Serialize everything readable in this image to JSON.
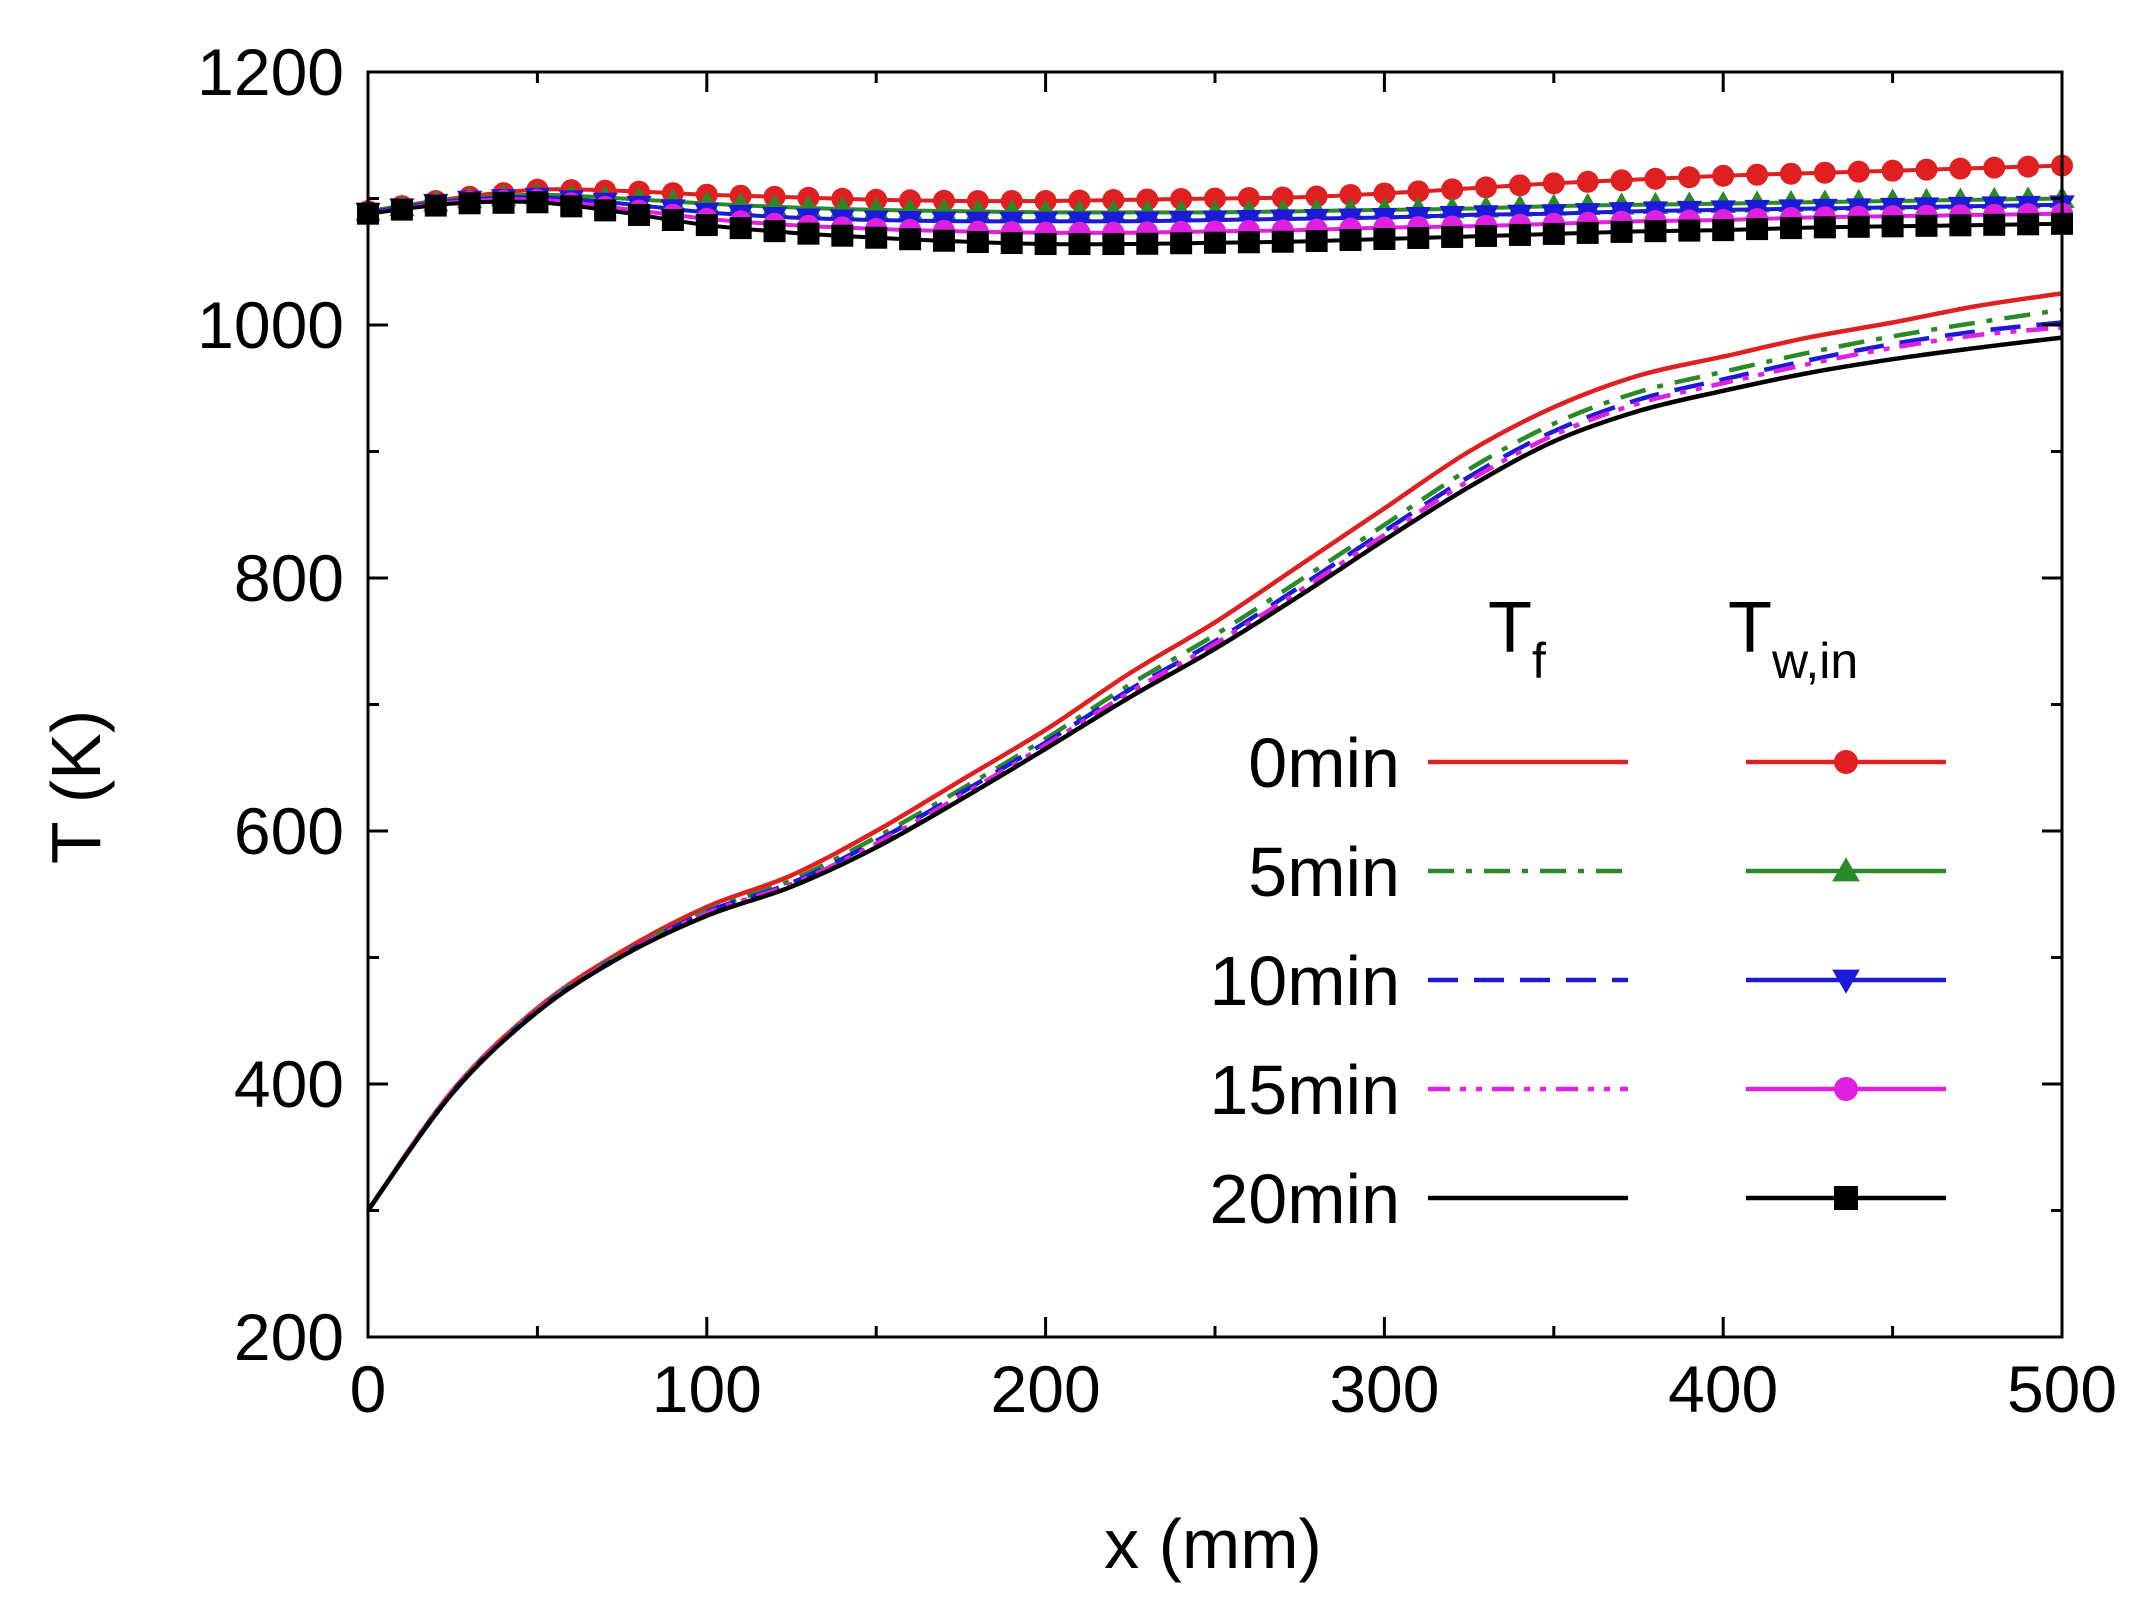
{
  "chart_data": {
    "type": "line",
    "title": "",
    "xlabel": "x (mm)",
    "ylabel": "T (K)",
    "xlim": [
      0,
      500
    ],
    "ylim": [
      200,
      1200
    ],
    "x_ticks": [
      0,
      100,
      200,
      300,
      400,
      500
    ],
    "y_ticks": [
      200,
      400,
      600,
      800,
      1000,
      1200
    ],
    "grid": false,
    "legend": {
      "placement": "bottom-right",
      "col_header_fluid": "T",
      "col_header_fluid_sub": "f",
      "col_header_wall": "T",
      "col_header_wall_sub": "w,in",
      "entries": [
        "0min",
        "5min",
        "10min",
        "15min",
        "20min"
      ]
    },
    "x": [
      0,
      25,
      50,
      75,
      100,
      125,
      150,
      175,
      200,
      225,
      250,
      275,
      300,
      325,
      350,
      375,
      400,
      425,
      450,
      475,
      500
    ],
    "series": [
      {
        "name": "T_f 0min",
        "group": "T_f",
        "time": "0min",
        "color": "#e02020",
        "dash": "solid",
        "values": [
          300,
          395,
          460,
          505,
          540,
          565,
          600,
          640,
          680,
          725,
          765,
          810,
          855,
          900,
          935,
          960,
          975,
          990,
          1002,
          1015,
          1025
        ]
      },
      {
        "name": "T_f 5min",
        "group": "T_f",
        "time": "5min",
        "color": "#2a8a2a",
        "dash": "dashdot",
        "values": [
          300,
          394,
          459,
          503,
          537,
          561,
          595,
          633,
          673,
          716,
          755,
          798,
          842,
          886,
          922,
          947,
          963,
          978,
          991,
          1002,
          1012
        ]
      },
      {
        "name": "T_f 10min",
        "group": "T_f",
        "time": "10min",
        "color": "#1a1ad8",
        "dash": "dash",
        "values": [
          300,
          394,
          458,
          502,
          536,
          559,
          592,
          630,
          670,
          712,
          750,
          793,
          837,
          880,
          916,
          941,
          957,
          972,
          985,
          995,
          1002
        ]
      },
      {
        "name": "T_f 15min",
        "group": "T_f",
        "time": "15min",
        "color": "#e020e0",
        "dash": "dashdotdot",
        "values": [
          300,
          394,
          458,
          502,
          535,
          558,
          590,
          628,
          668,
          710,
          748,
          790,
          834,
          877,
          913,
          938,
          954,
          969,
          982,
          992,
          998
        ]
      },
      {
        "name": "T_f 20min",
        "group": "T_f",
        "time": "20min",
        "color": "#000000",
        "dash": "solid",
        "values": [
          300,
          393,
          457,
          501,
          533,
          556,
          587,
          625,
          665,
          706,
          744,
          786,
          830,
          872,
          908,
          932,
          948,
          962,
          973,
          982,
          990
        ]
      },
      {
        "name": "T_w,in 0min",
        "group": "T_w,in",
        "time": "0min",
        "color": "#e02020",
        "marker": "circle",
        "values": [
          1090,
          1100,
          1107,
          1106,
          1103,
          1101,
          1099,
          1098,
          1098,
          1099,
          1100,
          1101,
          1104,
          1108,
          1112,
          1115,
          1118,
          1120,
          1122,
          1124,
          1126
        ]
      },
      {
        "name": "T_w,in 5min",
        "group": "T_w,in",
        "time": "5min",
        "color": "#2a8a2a",
        "marker": "triangle-up",
        "values": [
          1090,
          1099,
          1103,
          1100,
          1096,
          1093,
          1091,
          1090,
          1089,
          1089,
          1089,
          1090,
          1091,
          1092,
          1094,
          1095,
          1096,
          1097,
          1098,
          1099,
          1100
        ]
      },
      {
        "name": "T_w,in 10min",
        "group": "T_w,in",
        "time": "10min",
        "color": "#1a1ad8",
        "marker": "triangle-down",
        "values": [
          1089,
          1098,
          1101,
          1096,
          1089,
          1085,
          1083,
          1082,
          1082,
          1082,
          1083,
          1084,
          1085,
          1087,
          1088,
          1090,
          1091,
          1092,
          1093,
          1094,
          1095
        ]
      },
      {
        "name": "T_w,in 15min",
        "group": "T_w,in",
        "time": "15min",
        "color": "#e020e0",
        "marker": "circle",
        "values": [
          1088,
          1097,
          1099,
          1092,
          1084,
          1079,
          1076,
          1074,
          1073,
          1073,
          1074,
          1075,
          1077,
          1078,
          1080,
          1082,
          1083,
          1085,
          1086,
          1087,
          1088
        ]
      },
      {
        "name": "T_w,in 20min",
        "group": "T_w,in",
        "time": "20min",
        "color": "#000000",
        "marker": "square",
        "values": [
          1088,
          1096,
          1097,
          1089,
          1079,
          1073,
          1069,
          1066,
          1064,
          1064,
          1065,
          1066,
          1068,
          1070,
          1072,
          1074,
          1075,
          1077,
          1078,
          1079,
          1080
        ]
      }
    ]
  }
}
